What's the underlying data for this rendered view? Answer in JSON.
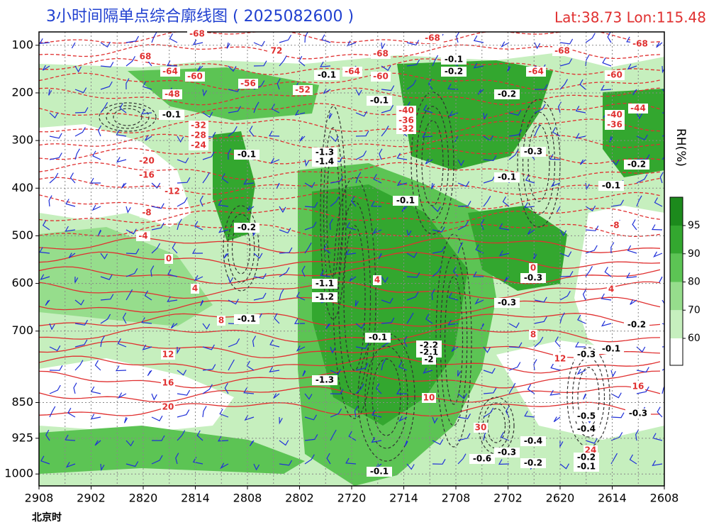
{
  "chart_data": {
    "type": "contour",
    "title": "3小时间隔单点综合廓线图 ( 2025082600 )",
    "subtitle": "Lat:38.73  Lon:115.48",
    "x_label": "北京时",
    "colorbar_label": "RH(%)",
    "categories": [
      "2908",
      "2902",
      "2820",
      "2814",
      "2808",
      "2802",
      "2720",
      "2714",
      "2708",
      "2702",
      "2620",
      "2614",
      "2608"
    ],
    "ylim": [
      1025,
      72
    ],
    "yticks": [
      100,
      200,
      300,
      400,
      500,
      600,
      700,
      850,
      925,
      1000
    ],
    "grid": true,
    "colorbar": {
      "levels": [
        60,
        70,
        80,
        90,
        95
      ],
      "colors": [
        "#ffffff",
        "#c6efbe",
        "#96dd8c",
        "#5cc454",
        "#33a72f",
        "#1c8a1c"
      ]
    },
    "annotations": [
      {
        "text": "-68",
        "color": "#e03030"
      },
      {
        "text": "-68",
        "color": "#e03030"
      },
      {
        "text": "68",
        "color": "#e03030"
      },
      {
        "text": "72",
        "color": "#e03030"
      },
      {
        "text": "-68",
        "color": "#e03030"
      },
      {
        "text": "-68",
        "color": "#e03030"
      },
      {
        "text": "-68",
        "color": "#e03030"
      },
      {
        "text": "-64",
        "color": "#e03030"
      },
      {
        "text": "-60",
        "color": "#e03030"
      },
      {
        "text": "-56",
        "color": "#e03030"
      },
      {
        "text": "-52",
        "color": "#e03030"
      },
      {
        "text": "-64",
        "color": "#e03030"
      },
      {
        "text": "-60",
        "color": "#e03030"
      },
      {
        "text": "-64",
        "color": "#e03030"
      },
      {
        "text": "-60",
        "color": "#e03030"
      },
      {
        "text": "-48",
        "color": "#e03030"
      },
      {
        "text": "-40",
        "color": "#e03030"
      },
      {
        "text": "-36",
        "color": "#e03030"
      },
      {
        "text": "-32",
        "color": "#e03030"
      },
      {
        "text": "-32",
        "color": "#e03030"
      },
      {
        "text": "-28",
        "color": "#e03030"
      },
      {
        "text": "-24",
        "color": "#e03030"
      },
      {
        "text": "-20",
        "color": "#e03030"
      },
      {
        "text": "-16",
        "color": "#e03030"
      },
      {
        "text": "-12",
        "color": "#e03030"
      },
      {
        "text": "-8",
        "color": "#e03030"
      },
      {
        "text": "-4",
        "color": "#e03030"
      },
      {
        "text": "0",
        "color": "#e03030"
      },
      {
        "text": "4",
        "color": "#e03030"
      },
      {
        "text": "8",
        "color": "#e03030"
      },
      {
        "text": "12",
        "color": "#e03030"
      },
      {
        "text": "16",
        "color": "#e03030"
      },
      {
        "text": "20",
        "color": "#e03030"
      },
      {
        "text": "4",
        "color": "#e03030"
      },
      {
        "text": "0",
        "color": "#e03030"
      },
      {
        "text": "-8",
        "color": "#e03030"
      },
      {
        "text": "4",
        "color": "#e03030"
      },
      {
        "text": "8",
        "color": "#e03030"
      },
      {
        "text": "12",
        "color": "#e03030"
      },
      {
        "text": "16",
        "color": "#e03030"
      },
      {
        "text": "24",
        "color": "#e03030"
      },
      {
        "text": "10",
        "color": "#e03030"
      },
      {
        "text": "30",
        "color": "#e03030"
      },
      {
        "text": "-44",
        "color": "#e03030"
      },
      {
        "text": "-40",
        "color": "#e03030"
      },
      {
        "text": "-36",
        "color": "#e03030"
      },
      {
        "text": "-0.1",
        "color": "#000000"
      },
      {
        "text": "-0.1",
        "color": "#000000"
      },
      {
        "text": "-0.2",
        "color": "#000000"
      },
      {
        "text": "-0.1",
        "color": "#000000"
      },
      {
        "text": "-1.1",
        "color": "#000000"
      },
      {
        "text": "-1.2",
        "color": "#000000"
      },
      {
        "text": "-1.3",
        "color": "#000000"
      },
      {
        "text": "-1.4",
        "color": "#000000"
      },
      {
        "text": "-1.3",
        "color": "#000000"
      },
      {
        "text": "-0.1",
        "color": "#000000"
      },
      {
        "text": "-0.1",
        "color": "#000000"
      },
      {
        "text": "-0.1",
        "color": "#000000"
      },
      {
        "text": "-0.2",
        "color": "#000000"
      },
      {
        "text": "-0.2",
        "color": "#000000"
      },
      {
        "text": "-0.3",
        "color": "#000000"
      },
      {
        "text": "-0.1",
        "color": "#000000"
      },
      {
        "text": "-0.1",
        "color": "#000000"
      },
      {
        "text": "-0.2",
        "color": "#000000"
      },
      {
        "text": "-0.3",
        "color": "#000000"
      },
      {
        "text": "-0.3",
        "color": "#000000"
      },
      {
        "text": "-0.2",
        "color": "#000000"
      },
      {
        "text": "-0.1",
        "color": "#000000"
      },
      {
        "text": "-0.3",
        "color": "#000000"
      },
      {
        "text": "-0.5",
        "color": "#000000"
      },
      {
        "text": "-0.4",
        "color": "#000000"
      },
      {
        "text": "-0.3",
        "color": "#000000"
      },
      {
        "text": "-0.4",
        "color": "#000000"
      },
      {
        "text": "-0.3",
        "color": "#000000"
      },
      {
        "text": "-0.2",
        "color": "#000000"
      },
      {
        "text": "-0.2",
        "color": "#000000"
      },
      {
        "text": "-0.1",
        "color": "#000000"
      },
      {
        "text": "-0.6",
        "color": "#000000"
      },
      {
        "text": "-0.1",
        "color": "#000000"
      },
      {
        "text": "-2.2",
        "color": "#000000"
      },
      {
        "text": "-2.1",
        "color": "#000000"
      },
      {
        "text": "-2",
        "color": "#000000"
      },
      {
        "text": "-0.1",
        "color": "#000000"
      },
      {
        "text": "-0.1",
        "color": "#000000"
      }
    ]
  }
}
